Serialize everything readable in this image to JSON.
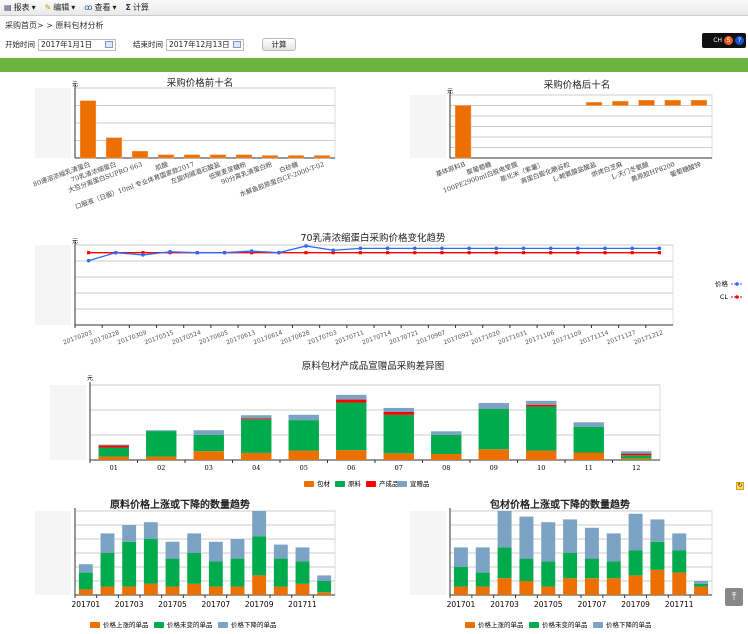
{
  "toolbar": {
    "report": "报表",
    "edit": "编辑",
    "view": "查看",
    "calc": "计算"
  },
  "breadcrumb": "采购首页> > 原料包材分析",
  "filters": {
    "start_label": "开始时间",
    "start_value": "2017年1月1日",
    "end_label": "结束时间",
    "end_value": "2017年12月13日",
    "calc_button": "计算"
  },
  "ime": {
    "lang": "CH",
    "s": "S",
    "help": "?"
  },
  "colors": {
    "orange": "#ec7000",
    "green": "#00ab4e",
    "red": "#ff0000",
    "steel": "#7ca3c4",
    "blue": "#2f6cf5",
    "accent": "#6db33f"
  },
  "chart_data": [
    {
      "type": "bar",
      "title": "采购价格前十名",
      "yunit": "元",
      "ylim": [
        0,
        400
      ],
      "yticks": [
        0,
        100,
        200,
        300,
        400
      ],
      "categories": [
        "80速溶浓缩乳清蛋白",
        "70乳清浓缩蛋白",
        "大豆分离蛋白SUPRO 663",
        "肌酸",
        "口服液（日服）10ml 专业体育国家款2017",
        "左旋肉碱酒石酸盐",
        "低聚麦芽糖粉",
        "90分离乳清蛋白粉",
        "白砂糖",
        "水解鱼胶原蛋白CF-2000-T-02"
      ],
      "values": [
        327,
        116,
        39,
        18,
        18,
        18,
        18,
        14,
        14,
        14
      ]
    },
    {
      "type": "bar",
      "title": "采购价格后十名",
      "yunit": "元",
      "ylim": [
        0,
        3
      ],
      "yticks": [
        0,
        0.5,
        1,
        1.5,
        2,
        2.5,
        3
      ],
      "categories": [
        "基体原料B",
        "聚葡萄糖",
        "100PE2900ml白胶电堂膜",
        "膨化米（紫薯）",
        "高蛋白膨化脆谷粒",
        "L-赖氨酸盐酸盐",
        "烘烤白芝麻",
        "L-天门冬氨酸",
        "黄原胶HP8200",
        "葡萄糖酸锌"
      ],
      "ranges": [
        [
          0,
          2.5
        ],
        [
          0,
          0
        ],
        [
          0,
          0
        ],
        [
          0,
          0
        ],
        [
          0,
          0
        ],
        [
          2.5,
          2.65
        ],
        [
          2.5,
          2.7
        ],
        [
          2.5,
          2.75
        ],
        [
          2.5,
          2.75
        ],
        [
          2.5,
          2.75
        ]
      ]
    },
    {
      "type": "line",
      "title": "70乳清浓缩蛋白采购价格变化趋势",
      "yunit": "元",
      "ylim": [
        0,
        5
      ],
      "legend": "right",
      "x": [
        "20170203",
        "20170228",
        "20170309",
        "20170515",
        "20170524",
        "20170605",
        "20170613",
        "20170614",
        "20170628",
        "20170703",
        "20170711",
        "20170714",
        "20170721",
        "20170907",
        "20170921",
        "20171020",
        "20171031",
        "20171106",
        "20171109",
        "20171114",
        "20171127",
        "20171212"
      ],
      "series": [
        {
          "name": "价格",
          "values": [
            4.02,
            4.52,
            4.38,
            4.58,
            4.52,
            4.52,
            4.62,
            4.52,
            4.94,
            4.67,
            4.79,
            4.79,
            4.79,
            4.79,
            4.79,
            4.79,
            4.79,
            4.79,
            4.79,
            4.79,
            4.79,
            4.79
          ]
        },
        {
          "name": "CL",
          "values": [
            4.52,
            4.52,
            4.52,
            4.52,
            4.52,
            4.52,
            4.52,
            4.52,
            4.52,
            4.52,
            4.52,
            4.52,
            4.52,
            4.52,
            4.52,
            4.52,
            4.52,
            4.52,
            4.52,
            4.52,
            4.52,
            4.52
          ]
        }
      ]
    },
    {
      "type": "bar",
      "stacked": true,
      "title": "原料包材产成品宣赠品采购差异图",
      "yunit": "元",
      "ylim": [
        0,
        350000
      ],
      "legend": "bottom",
      "categories": [
        "01",
        "02",
        "03",
        "04",
        "05",
        "06",
        "07",
        "08",
        "09",
        "10",
        "11",
        "12"
      ],
      "series": [
        {
          "name": "包材",
          "values": [
            16000,
            16000,
            41000,
            33000,
            44000,
            46000,
            31000,
            28000,
            50000,
            44000,
            35000,
            6000
          ]
        },
        {
          "name": "原料",
          "values": [
            42000,
            119000,
            76000,
            157000,
            142000,
            222000,
            180000,
            89000,
            188000,
            206000,
            119000,
            16000
          ]
        },
        {
          "name": "产成品",
          "values": [
            10000,
            0,
            0,
            5000,
            0,
            14000,
            13000,
            0,
            0,
            8000,
            0,
            8000
          ]
        },
        {
          "name": "宣赠品",
          "values": [
            4000,
            4000,
            22000,
            14000,
            25000,
            22000,
            19000,
            17000,
            28000,
            18000,
            22000,
            11000
          ]
        }
      ]
    },
    {
      "type": "bar",
      "stacked": true,
      "title": "原料价格上涨或下降的数量趋势",
      "ylim": [
        0,
        30
      ],
      "legend": "bottom",
      "categories": [
        "201701",
        "201702",
        "201703",
        "201704",
        "201705",
        "201706",
        "201707",
        "201708",
        "201709",
        "201710",
        "201711",
        "201712"
      ],
      "xticklabels": [
        "201701",
        "201703",
        "201705",
        "201707",
        "201709",
        "201711"
      ],
      "series": [
        {
          "name": "价格上涨的单品",
          "values": [
            2,
            3,
            3,
            4,
            3,
            4,
            3,
            3,
            7,
            3,
            4,
            1
          ]
        },
        {
          "name": "价格未变的单品",
          "values": [
            6,
            12,
            16,
            16,
            10,
            11,
            9,
            10,
            14,
            10,
            8,
            4
          ]
        },
        {
          "name": "价格下降的单品",
          "values": [
            3,
            7,
            6,
            6,
            6,
            7,
            7,
            7,
            9,
            5,
            5,
            2
          ]
        }
      ]
    },
    {
      "type": "bar",
      "stacked": true,
      "title": "包材价格上涨或下降的数量趋势",
      "ylim": [
        0,
        30
      ],
      "legend": "bottom",
      "categories": [
        "201701",
        "201702",
        "201703",
        "201704",
        "201705",
        "201706",
        "201707",
        "201708",
        "201709",
        "201710",
        "201711",
        "201712"
      ],
      "xticklabels": [
        "201701",
        "201703",
        "201705",
        "201707",
        "201709",
        "201711"
      ],
      "series": [
        {
          "name": "价格上涨的单品",
          "values": [
            3,
            3,
            6,
            5,
            3,
            6,
            6,
            6,
            7,
            9,
            8,
            3
          ]
        },
        {
          "name": "价格未变的单品",
          "values": [
            7,
            5,
            11,
            8,
            9,
            9,
            7,
            6,
            9,
            10,
            8,
            1
          ]
        },
        {
          "name": "价格下降的单品",
          "values": [
            7,
            9,
            13,
            15,
            14,
            12,
            11,
            10,
            13,
            8,
            6,
            1
          ]
        }
      ]
    }
  ]
}
